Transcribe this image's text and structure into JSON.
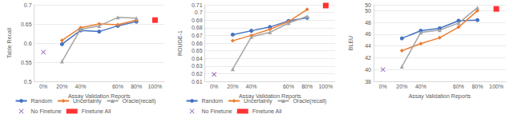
{
  "chart_data": [
    {
      "type": "line",
      "x_label": "Assay Validation Reports",
      "y_label": "Table Recall",
      "categories": [
        "0%",
        "20%",
        "40%",
        null,
        "60%",
        "80%",
        "100%"
      ],
      "ylim": [
        0.5,
        0.7
      ],
      "yticks": [
        0.5,
        0.55,
        0.6,
        0.65,
        0.7
      ],
      "grid": true,
      "legend": "bottom",
      "series": [
        {
          "name": "Random",
          "color": "#4472c4",
          "marker": "circle",
          "line_style": "solid",
          "values": [
            null,
            0.597,
            0.633,
            0.63,
            0.645,
            0.656,
            null
          ]
        },
        {
          "name": "Uncertainty",
          "color": "#ed7d31",
          "marker": "diamond",
          "line_style": "solid",
          "values": [
            null,
            0.607,
            0.64,
            0.65,
            0.648,
            0.66,
            null
          ]
        },
        {
          "name": "Oracle(recall)",
          "color": "#a5a5a5",
          "marker": "triangle",
          "line_style": "solid",
          "values": [
            null,
            0.552,
            0.636,
            0.645,
            0.667,
            0.665,
            null
          ]
        },
        {
          "name": "No Finetune",
          "color": "#7030a0",
          "marker": "x",
          "type": "scatter",
          "values": [
            0.576,
            null,
            null,
            null,
            null,
            null,
            null
          ]
        },
        {
          "name": "Finetune All",
          "color": "#ff0000",
          "marker": "square",
          "type": "scatter",
          "values": [
            null,
            null,
            null,
            null,
            null,
            null,
            0.66
          ]
        }
      ]
    },
    {
      "type": "line",
      "x_label": "Assay Validation Reports",
      "y_label": "ROUGE-1",
      "categories": [
        "0%",
        "20%",
        "40%",
        null,
        "60%",
        "80%",
        "100%"
      ],
      "ylim": [
        0.61,
        0.71
      ],
      "yticks": [
        0.61,
        0.62,
        0.63,
        0.64,
        0.65,
        0.66,
        0.67,
        0.68,
        0.69,
        0.7,
        0.71
      ],
      "grid": true,
      "legend": "bottom",
      "series": [
        {
          "name": "Random",
          "color": "#4472c4",
          "marker": "circle",
          "line_style": "solid",
          "values": [
            null,
            0.671,
            0.676,
            0.681,
            0.689,
            0.693,
            null
          ]
        },
        {
          "name": "Uncertainty",
          "color": "#ed7d31",
          "marker": "diamond",
          "line_style": "solid",
          "values": [
            null,
            0.663,
            0.67,
            0.678,
            0.688,
            0.704,
            null
          ]
        },
        {
          "name": "Oracle(recall)",
          "color": "#a5a5a5",
          "marker": "triangle",
          "line_style": "solid",
          "values": [
            null,
            0.626,
            0.668,
            0.674,
            0.686,
            0.695,
            null
          ]
        },
        {
          "name": "No Finetune",
          "color": "#7030a0",
          "marker": "x",
          "type": "scatter",
          "values": [
            0.619,
            null,
            null,
            null,
            null,
            null,
            null
          ]
        },
        {
          "name": "Finetune All",
          "color": "#ff0000",
          "marker": "square",
          "type": "scatter",
          "values": [
            null,
            null,
            null,
            null,
            null,
            null,
            0.709
          ]
        }
      ]
    },
    {
      "type": "line",
      "x_label": "Assay Validation Reports",
      "y_label": "BLEU",
      "categories": [
        "0%",
        "20%",
        "40%",
        null,
        "60%",
        "80%",
        "100%"
      ],
      "ylim": [
        38,
        51
      ],
      "yticks": [
        38,
        40,
        42,
        44,
        46,
        48,
        50
      ],
      "grid": true,
      "series": [
        {
          "name": "Random",
          "color": "#4472c4",
          "marker": "circle",
          "line_style": "solid",
          "values": [
            null,
            45.3,
            46.6,
            47.0,
            48.3,
            48.4,
            null
          ]
        },
        {
          "name": "Uncertainty",
          "color": "#ed7d31",
          "marker": "diamond",
          "line_style": "solid",
          "values": [
            null,
            43.2,
            44.4,
            45.4,
            47.2,
            50.0,
            null
          ]
        },
        {
          "name": "Oracle(recall)",
          "color": "#a5a5a5",
          "marker": "triangle",
          "line_style": "solid",
          "values": [
            null,
            40.5,
            46.3,
            46.7,
            47.9,
            50.5,
            null
          ]
        },
        {
          "name": "No Finetune",
          "color": "#7030a0",
          "marker": "x",
          "type": "scatter",
          "values": [
            40.0,
            null,
            null,
            null,
            null,
            null,
            null
          ]
        },
        {
          "name": "Finetune All",
          "color": "#ff0000",
          "marker": "square",
          "type": "scatter",
          "values": [
            null,
            null,
            null,
            null,
            null,
            null,
            50.3
          ]
        }
      ]
    }
  ]
}
